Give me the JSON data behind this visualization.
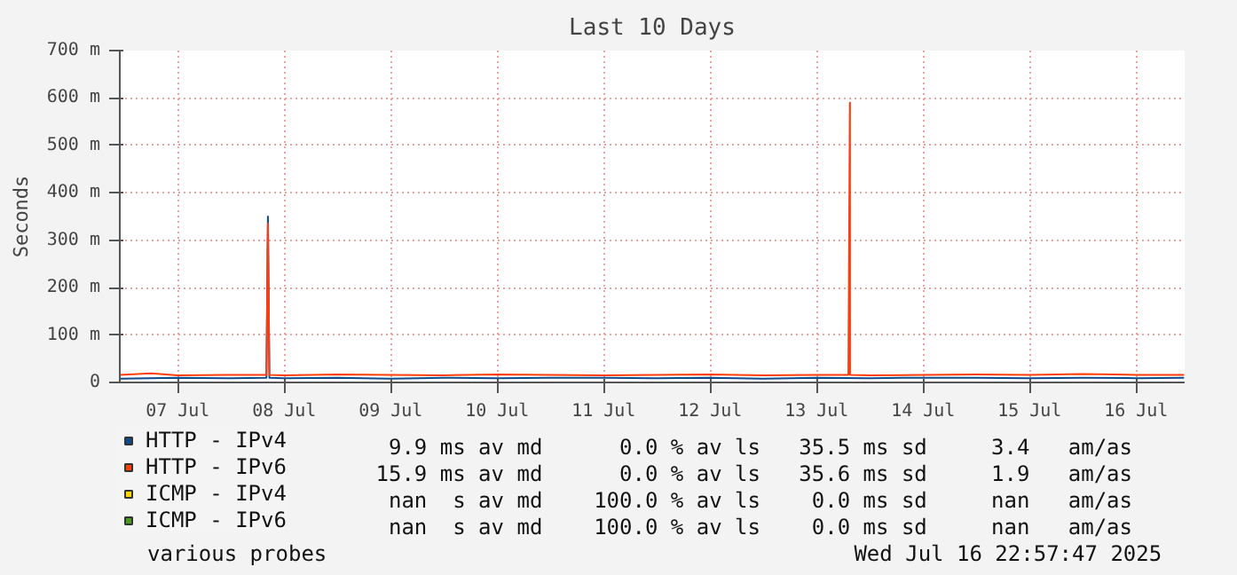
{
  "chart_data": {
    "type": "line",
    "title": "Last 10 Days",
    "ylabel": "Seconds",
    "xlim": [
      "2025-07-06T22:57",
      "2025-07-16T22:57"
    ],
    "xticks": [
      {
        "value": "2025-07-07T12:00",
        "label": "07 Jul"
      },
      {
        "value": "2025-07-08T12:00",
        "label": "08 Jul"
      },
      {
        "value": "2025-07-09T12:00",
        "label": "09 Jul"
      },
      {
        "value": "2025-07-10T12:00",
        "label": "10 Jul"
      },
      {
        "value": "2025-07-11T12:00",
        "label": "11 Jul"
      },
      {
        "value": "2025-07-12T12:00",
        "label": "12 Jul"
      },
      {
        "value": "2025-07-13T12:00",
        "label": "13 Jul"
      },
      {
        "value": "2025-07-14T12:00",
        "label": "14 Jul"
      },
      {
        "value": "2025-07-15T12:00",
        "label": "15 Jul"
      },
      {
        "value": "2025-07-16T12:00",
        "label": "16 Jul"
      }
    ],
    "ylim": [
      0,
      700
    ],
    "yticks": [
      0,
      {
        "value": 100,
        "label": "100 m"
      },
      {
        "value": 200,
        "label": "200 m"
      },
      {
        "value": 300,
        "label": "300 m"
      },
      {
        "value": 400,
        "label": "400 m"
      },
      {
        "value": 500,
        "label": "500 m"
      },
      {
        "value": 600,
        "label": "600 m"
      },
      {
        "value": 700,
        "label": "700 m"
      }
    ],
    "grid": true,
    "legend": "bottom",
    "series": [
      {
        "name": "HTTP - IPv4",
        "color": "#0b4c8c",
        "x": [
          "2025-07-06T23:00",
          "2025-07-07T12:00",
          "2025-07-08T00:00",
          "2025-07-08T08:00",
          "2025-07-08T08:20",
          "2025-07-08T08:40",
          "2025-07-08T12:00",
          "2025-07-09T00:00",
          "2025-07-09T12:00",
          "2025-07-10T00:00",
          "2025-07-10T12:00",
          "2025-07-11T00:00",
          "2025-07-11T12:00",
          "2025-07-12T00:00",
          "2025-07-12T12:00",
          "2025-07-13T00:00",
          "2025-07-13T12:00",
          "2025-07-14T00:00",
          "2025-07-14T12:00",
          "2025-07-15T00:00",
          "2025-07-15T12:00",
          "2025-07-16T00:00",
          "2025-07-16T12:00",
          "2025-07-16T22:50"
        ],
        "values": [
          8,
          10,
          9,
          10,
          350,
          10,
          9,
          10,
          8,
          10,
          9,
          10,
          10,
          9,
          10,
          8,
          10,
          9,
          10,
          10,
          9,
          10,
          9,
          10
        ]
      },
      {
        "name": "HTTP - IPv6",
        "color": "#ff3d0a",
        "x": [
          "2025-07-06T23:00",
          "2025-07-07T06:00",
          "2025-07-07T12:00",
          "2025-07-08T00:00",
          "2025-07-08T08:00",
          "2025-07-08T08:20",
          "2025-07-08T08:40",
          "2025-07-08T12:00",
          "2025-07-09T00:00",
          "2025-07-09T12:00",
          "2025-07-10T00:00",
          "2025-07-10T12:00",
          "2025-07-11T00:00",
          "2025-07-11T12:00",
          "2025-07-12T00:00",
          "2025-07-12T12:00",
          "2025-07-13T00:00",
          "2025-07-13T12:00",
          "2025-07-13T19:10",
          "2025-07-13T19:30",
          "2025-07-13T19:31",
          "2025-07-13T19:32",
          "2025-07-14T00:00",
          "2025-07-14T12:00",
          "2025-07-15T00:00",
          "2025-07-15T12:00",
          "2025-07-16T00:00",
          "2025-07-16T12:00",
          "2025-07-16T22:50"
        ],
        "values": [
          16,
          19,
          15,
          16,
          16,
          335,
          16,
          15,
          17,
          16,
          15,
          17,
          16,
          15,
          16,
          17,
          15,
          16,
          16,
          590,
          590,
          16,
          15,
          16,
          17,
          16,
          18,
          16,
          16
        ]
      },
      {
        "name": "ICMP - IPv4",
        "color": "#ffd700"
      },
      {
        "name": "ICMP - IPv6",
        "color": "#4c9a1c"
      }
    ],
    "annotations": [
      "     9.9 ms av md      0.0 % av ls   35.5 ms sd     3.4   am/as",
      "    15.9 ms av md      0.0 % av ls   35.6 ms sd     1.9   am/as",
      "     nan  s av md    100.0 % av ls    0.0 ms sd     nan   am/as",
      "     nan  s av md    100.0 % av ls    0.0 ms sd     nan   am/as",
      "various probes",
      "Wed Jul 16 22:57:47 2025"
    ]
  }
}
